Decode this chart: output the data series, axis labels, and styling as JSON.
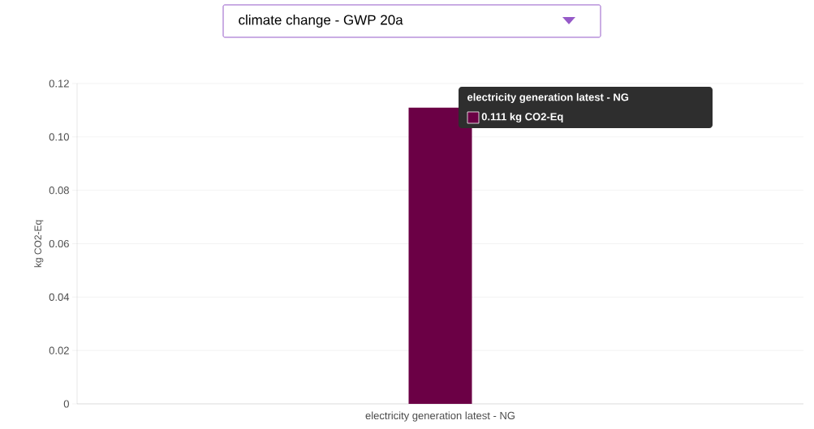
{
  "chart_data": {
    "type": "bar",
    "title": "climate change - GWP 20a",
    "ylabel": "kg CO2-Eq",
    "categories": [
      "electricity generation latest - NG"
    ],
    "values": [
      0.111
    ],
    "color": "#6b0045",
    "annotations": [
      "electricity generation latest - NG",
      "0.111 kg CO2-Eq"
    ],
    "ylim": [
      0,
      0.12
    ],
    "yticks": [
      0,
      0.02,
      0.04,
      0.06,
      0.08,
      {
        "value": 0.1,
        "label": "0.10"
      },
      0.12
    ],
    "grid": "y"
  }
}
